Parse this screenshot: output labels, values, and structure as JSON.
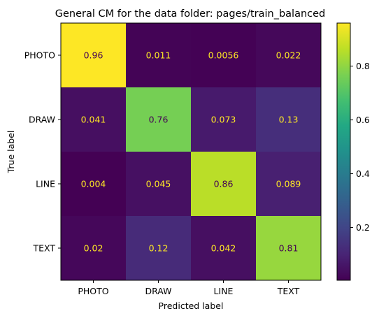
{
  "chart_data": {
    "type": "heatmap",
    "title": "General CM for the data folder: pages/train_balanced",
    "xlabel": "Predicted label",
    "ylabel": "True label",
    "x_categories": [
      "PHOTO",
      "DRAW",
      "LINE",
      "TEXT"
    ],
    "y_categories": [
      "PHOTO",
      "DRAW",
      "LINE",
      "TEXT"
    ],
    "values": [
      [
        0.96,
        0.011,
        0.0056,
        0.022
      ],
      [
        0.041,
        0.76,
        0.073,
        0.13
      ],
      [
        0.004,
        0.045,
        0.86,
        0.089
      ],
      [
        0.02,
        0.12,
        0.042,
        0.81
      ]
    ],
    "value_labels": [
      [
        "0.96",
        "0.011",
        "0.0056",
        "0.022"
      ],
      [
        "0.041",
        "0.76",
        "0.073",
        "0.13"
      ],
      [
        "0.004",
        "0.045",
        "0.86",
        "0.089"
      ],
      [
        "0.02",
        "0.12",
        "0.042",
        "0.81"
      ]
    ],
    "colormap": "viridis",
    "color_range": [
      0.004,
      0.96
    ],
    "colorbar": {
      "ticks": [
        0.2,
        0.4,
        0.6,
        0.8
      ],
      "tick_labels": [
        "0.2",
        "0.4",
        "0.6",
        "0.8"
      ]
    },
    "text_colors": {
      "on_dark": "#fde725",
      "on_light": "#440154"
    }
  }
}
